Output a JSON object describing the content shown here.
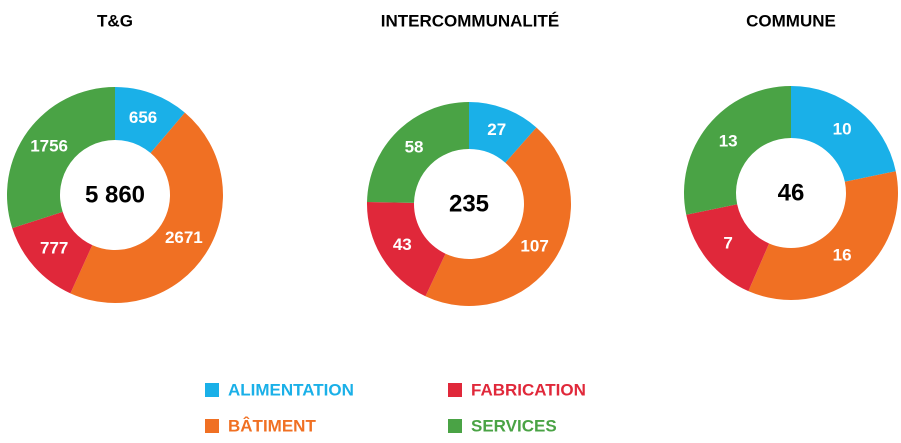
{
  "chart_data": [
    {
      "type": "donut",
      "title": "T&G",
      "center_label": "5 860",
      "categories": [
        "ALIMENTATION",
        "BÂTIMENT",
        "FABRICATION",
        "SERVICES"
      ],
      "values": [
        656,
        2671,
        777,
        1756
      ],
      "colors": [
        "#1ab0e8",
        "#f07023",
        "#e0283a",
        "#4aa345"
      ]
    },
    {
      "type": "donut",
      "title": "INTERCOMMUNALITÉ",
      "center_label": "235",
      "categories": [
        "ALIMENTATION",
        "BÂTIMENT",
        "FABRICATION",
        "SERVICES"
      ],
      "values": [
        27,
        107,
        43,
        58
      ],
      "colors": [
        "#1ab0e8",
        "#f07023",
        "#e0283a",
        "#4aa345"
      ]
    },
    {
      "type": "donut",
      "title": "COMMUNE",
      "center_label": "46",
      "categories": [
        "ALIMENTATION",
        "BÂTIMENT",
        "FABRICATION",
        "SERVICES"
      ],
      "values": [
        10,
        16,
        7,
        13
      ],
      "colors": [
        "#1ab0e8",
        "#f07023",
        "#e0283a",
        "#4aa345"
      ]
    }
  ]
}
